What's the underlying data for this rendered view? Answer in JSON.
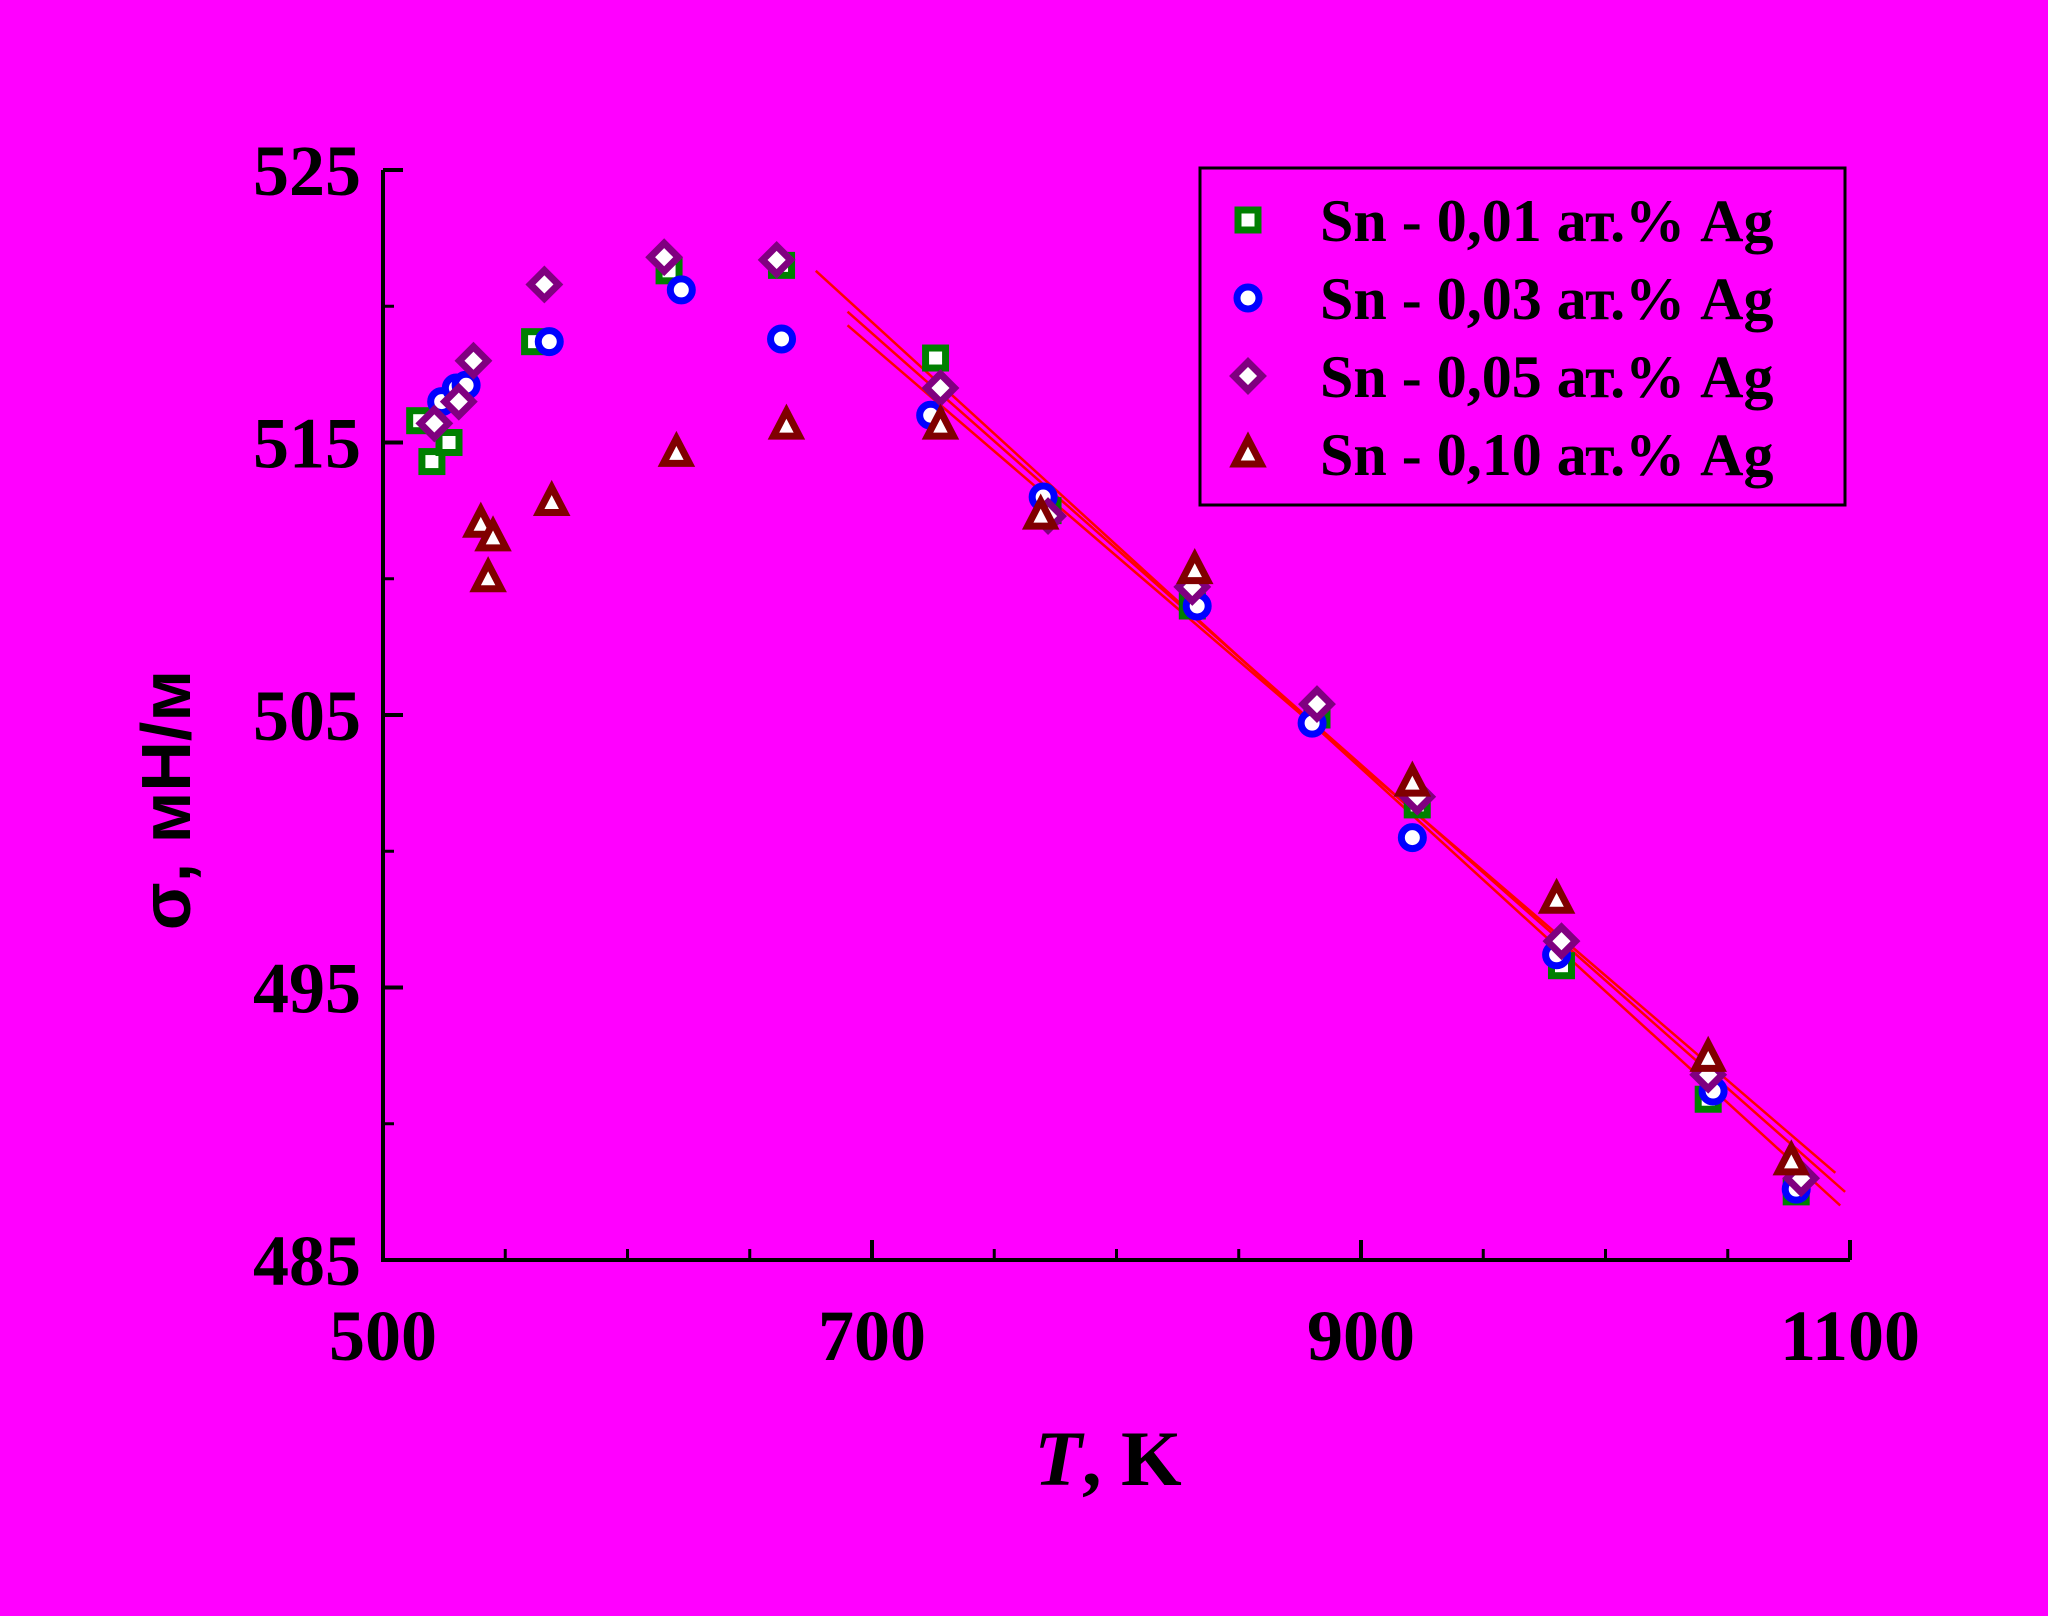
{
  "chart_data": {
    "type": "scatter",
    "xlabel_italic": "T",
    "xlabel_rest": ", K",
    "ylabel": "σ, мН/м",
    "xlim": [
      500,
      1100
    ],
    "ylim": [
      485,
      525
    ],
    "x_ticks": [
      500,
      700,
      900,
      1100
    ],
    "y_ticks": [
      485,
      495,
      505,
      515,
      525
    ],
    "x_minor_step": 50,
    "y_minor_step": 5,
    "grid": false,
    "legend_position": "top-right",
    "series": [
      {
        "name": "Sn - 0,01 ат.% Ag",
        "marker": "square",
        "color": "#008000",
        "points": [
          [
            515,
            515.8
          ],
          [
            520,
            514.3
          ],
          [
            527,
            515.0
          ],
          [
            562,
            518.7
          ],
          [
            617,
            521.3
          ],
          [
            663,
            521.5
          ],
          [
            726,
            518.1
          ],
          [
            772,
            512.5
          ],
          [
            831,
            509.0
          ],
          [
            882,
            505.0
          ],
          [
            923,
            501.7
          ],
          [
            982,
            495.8
          ],
          [
            1042,
            490.9
          ],
          [
            1078,
            487.5
          ]
        ]
      },
      {
        "name": "Sn - 0,03 ат.% Ag",
        "marker": "circle",
        "color": "#0000ff",
        "points": [
          [
            524,
            516.5
          ],
          [
            530,
            517.0
          ],
          [
            534,
            517.1
          ],
          [
            568,
            518.7
          ],
          [
            622,
            520.6
          ],
          [
            663,
            518.8
          ],
          [
            724,
            516.0
          ],
          [
            770,
            513.0
          ],
          [
            833,
            509.0
          ],
          [
            880,
            504.7
          ],
          [
            921,
            500.5
          ],
          [
            980,
            496.2
          ],
          [
            1044,
            491.2
          ],
          [
            1078,
            487.6
          ]
        ]
      },
      {
        "name": "Sn - 0,05 ат.% Ag",
        "marker": "diamond",
        "color": "#800080",
        "points": [
          [
            521,
            515.7
          ],
          [
            531,
            516.5
          ],
          [
            537,
            518.0
          ],
          [
            566,
            520.8
          ],
          [
            615,
            521.8
          ],
          [
            661,
            521.7
          ],
          [
            728,
            517.0
          ],
          [
            772,
            512.3
          ],
          [
            831,
            509.7
          ],
          [
            882,
            505.4
          ],
          [
            923,
            502.0
          ],
          [
            982,
            496.7
          ],
          [
            1042,
            491.8
          ],
          [
            1080,
            488.0
          ]
        ]
      },
      {
        "name": "Sn - 0,10 ат.% Ag",
        "marker": "triangle",
        "color": "#800000",
        "points": [
          [
            540,
            512.0
          ],
          [
            545,
            511.5
          ],
          [
            543,
            510.0
          ],
          [
            569,
            512.8
          ],
          [
            620,
            514.6
          ],
          [
            665,
            515.6
          ],
          [
            728,
            515.6
          ],
          [
            769,
            512.3
          ],
          [
            832,
            510.3
          ],
          [
            921,
            502.5
          ],
          [
            980,
            498.2
          ],
          [
            1042,
            492.4
          ],
          [
            1076,
            488.6
          ]
        ]
      }
    ],
    "fit_lines": [
      {
        "x": [
          677,
          1096
        ],
        "y": [
          521.3,
          487.0
        ]
      },
      {
        "x": [
          690,
          1098
        ],
        "y": [
          519.8,
          487.5
        ]
      },
      {
        "x": [
          690,
          1094
        ],
        "y": [
          519.3,
          488.2
        ]
      }
    ],
    "fit_line_color": "#ff0000"
  }
}
